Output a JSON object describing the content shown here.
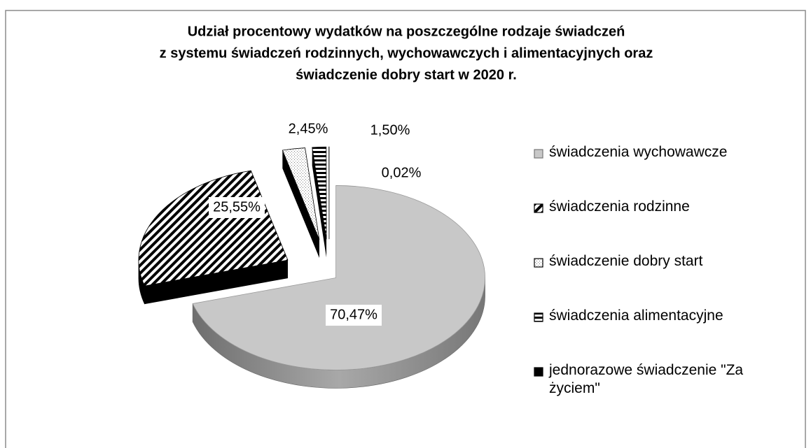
{
  "chart_data": {
    "type": "pie",
    "title": [
      "Udział procentowy wydatków na poszczególne rodzaje świadczeń",
      "z systemu świadczeń rodzinnych, wychowawczych i alimentacyjnych oraz",
      "świadczenie dobry start w 2020 r."
    ],
    "categories": [
      "świadczenia wychowawcze",
      "świadczenia rodzinne",
      "świadczenie dobry start",
      "świadczenia alimentacyjne",
      "jednorazowe świadczenie \"Za życiem\""
    ],
    "values": [
      70.47,
      25.55,
      2.45,
      1.5,
      0.02
    ],
    "value_labels": [
      "70,47%",
      "25,55%",
      "2,45%",
      "1,50%",
      "0,02%"
    ],
    "colors": [
      "#c8c8c8",
      "#000000",
      "#ffffff",
      "#000000",
      "#000000"
    ],
    "legend": "right"
  }
}
